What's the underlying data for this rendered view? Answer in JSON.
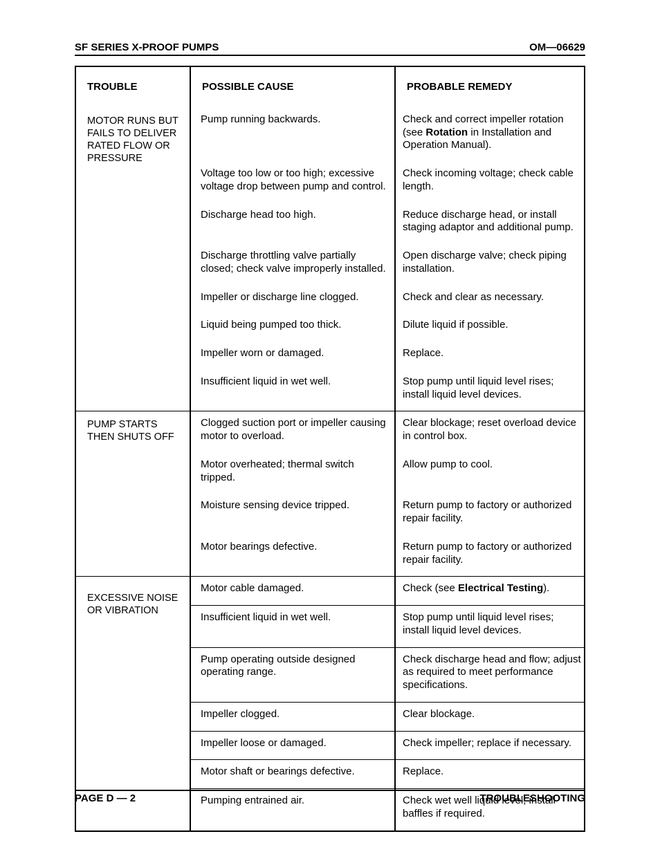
{
  "header": {
    "left": "SF SERIES X-PROOF PUMPS",
    "right": "OM—06629"
  },
  "footer": {
    "left": "PAGE D — 2",
    "right": "TROUBLESHOOTING"
  },
  "columns": {
    "trouble": "TROUBLE",
    "cause": "POSSIBLE CAUSE",
    "remedy": "PROBABLE REMEDY"
  },
  "sections": [
    {
      "trouble": "MOTOR RUNS BUT FAILS TO DELIVER RATED FLOW OR PRESSURE",
      "rows": [
        {
          "cause": "Pump running backwards.",
          "remedy_html": "Check and correct impeller rotation (see <b>Rotation</b> in Installation and Operation Manual)."
        },
        {
          "cause": "Voltage too low or too high; excessive voltage drop between pump and control.",
          "remedy_html": "Check incoming voltage; check cable length."
        },
        {
          "cause": "Discharge head too high.",
          "remedy_html": "Reduce discharge head, or install staging adaptor and additional pump."
        },
        {
          "cause": "Discharge throttling valve partially closed; check valve improperly installed.",
          "remedy_html": "Open discharge valve; check piping installation."
        },
        {
          "cause": "Impeller or discharge line clogged.",
          "remedy_html": "Check and clear as necessary."
        },
        {
          "cause": "Liquid being pumped too thick.",
          "remedy_html": "Dilute liquid if possible."
        },
        {
          "cause": "Impeller worn or damaged.",
          "remedy_html": "Replace."
        },
        {
          "cause": "Insufficient liquid in wet well.",
          "remedy_html": "Stop pump until liquid level rises; install liquid level devices."
        }
      ]
    },
    {
      "trouble": "PUMP STARTS THEN SHUTS OFF",
      "rows": [
        {
          "cause": "Clogged suction port or impeller causing motor to overload.",
          "remedy_html": "Clear blockage; reset overload device in control box."
        },
        {
          "cause": "Motor overheated; thermal switch tripped.",
          "remedy_html": "Allow pump to cool."
        },
        {
          "cause": "Moisture sensing device tripped.",
          "remedy_html": "Return pump to factory or authorized repair facility."
        },
        {
          "cause": "Motor bearings defective.",
          "remedy_html": "Return pump to factory or authorized repair facility."
        }
      ]
    },
    {
      "trouble": "EXCESSIVE NOISE OR VIBRA­TION",
      "trouble_pad_top": 22,
      "separated": true,
      "rows": [
        {
          "cause": "Motor cable damaged.",
          "remedy_html": "Check (see <b>Electrical Testing</b>)."
        },
        {
          "cause": "Insufficient liquid in wet well.",
          "remedy_html": "Stop pump until liquid level rises; install liquid level devices."
        },
        {
          "cause": "Pump operating outside designed operating range.",
          "remedy_html": "Check discharge head and flow; adjust as required to meet perform­ance specifications."
        },
        {
          "cause": "Impeller clogged.",
          "remedy_html": "Clear blockage."
        },
        {
          "cause": "Impeller loose or damaged.",
          "remedy_html": "Check impeller; replace if necessary."
        },
        {
          "cause": "Motor shaft or bearings defective.",
          "remedy_html": "Replace."
        },
        {
          "cause": "Pumping entrained air.",
          "remedy_html": "Check wet well liquid level; install baffles if required."
        }
      ]
    }
  ]
}
